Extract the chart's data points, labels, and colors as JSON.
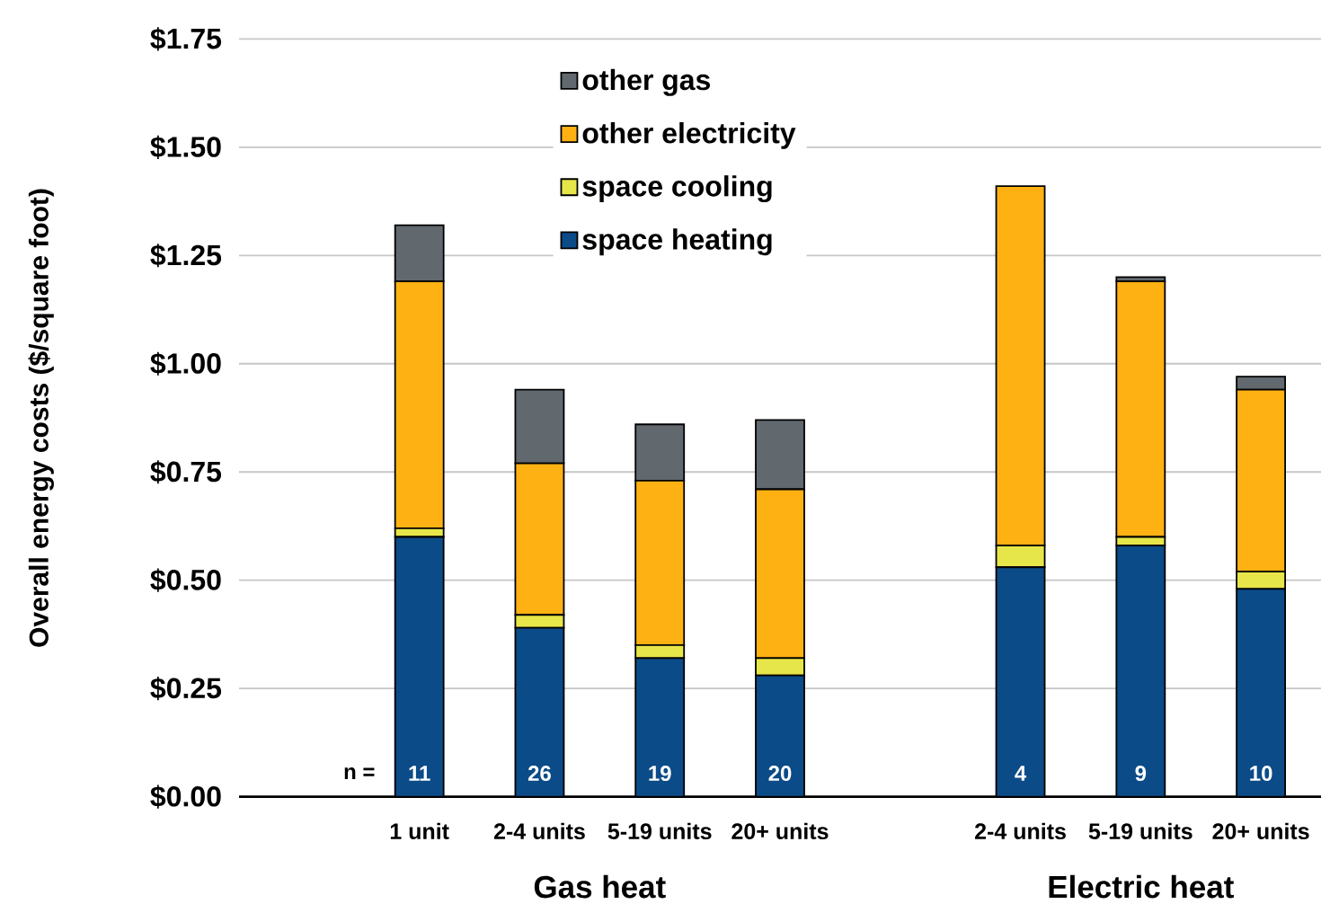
{
  "chart_data": {
    "type": "bar",
    "stacked": true,
    "ylabel": "Overall energy costs ($/square foot)",
    "categories": [
      "1 unit",
      "2-4 units",
      "5-19 units",
      "20+ units",
      null,
      "2-4 units",
      "5-19 units",
      "20+ units"
    ],
    "series": [
      {
        "name": "space heating",
        "color": "#0b4b88",
        "values": [
          0.6,
          0.39,
          0.32,
          0.28,
          null,
          0.53,
          0.58,
          0.48
        ]
      },
      {
        "name": "space cooling",
        "color": "#e6e64a",
        "values": [
          0.02,
          0.03,
          0.03,
          0.04,
          null,
          0.05,
          0.02,
          0.04
        ]
      },
      {
        "name": "other electricity",
        "color": "#feb112",
        "values": [
          0.57,
          0.35,
          0.38,
          0.39,
          null,
          0.83,
          0.59,
          0.42
        ]
      },
      {
        "name": "other gas",
        "color": "#61696f",
        "values": [
          0.13,
          0.17,
          0.13,
          0.16,
          null,
          0,
          0.01,
          0.03
        ]
      }
    ],
    "ylim": [
      0,
      1.75
    ],
    "yticks": [
      {
        "value": 0,
        "label": "$0.00"
      },
      {
        "value": 0.25,
        "label": "$0.25"
      },
      {
        "value": 0.5,
        "label": "$0.50"
      },
      {
        "value": 0.75,
        "label": "$0.75"
      },
      {
        "value": 1,
        "label": "$1.00"
      },
      {
        "value": 1.25,
        "label": "$1.25"
      },
      {
        "value": 1.5,
        "label": "$1.50"
      },
      {
        "value": 1.75,
        "label": "$1.75"
      }
    ],
    "grid": "y",
    "legend": "top left",
    "annotations": [
      "n =",
      "11",
      "26",
      "19",
      "20",
      "4",
      "9",
      "10",
      "Gas heat",
      "Electric heat"
    ]
  }
}
